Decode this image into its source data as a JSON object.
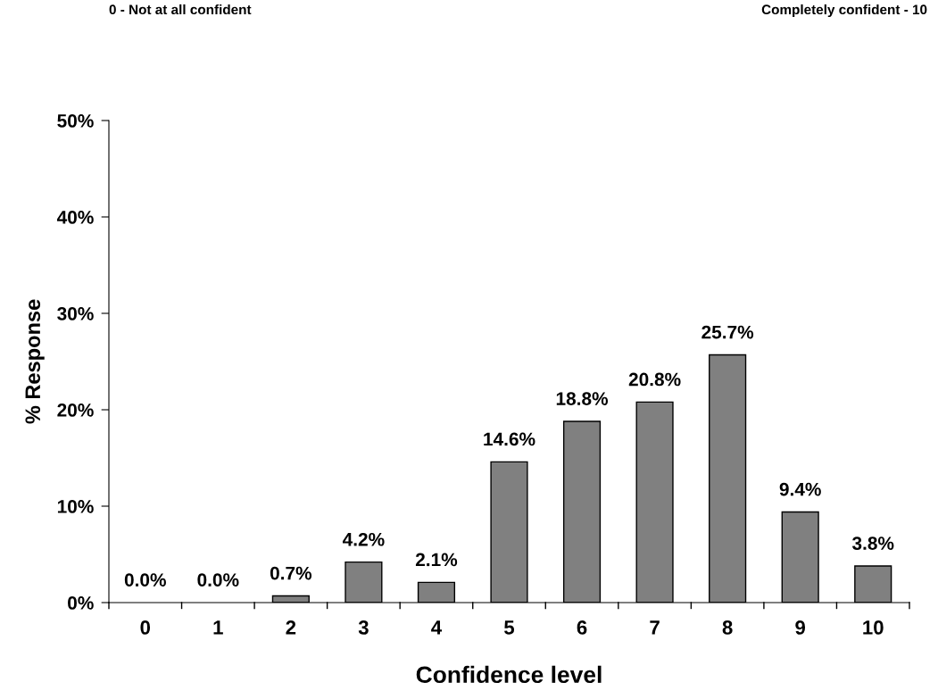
{
  "chart_data": {
    "type": "bar",
    "xlabel": "Confidence level",
    "ylabel": "% Response",
    "annotations": [
      "0 - Not at all confident",
      "Completely confident - 10"
    ],
    "categories": [
      "0",
      "1",
      "2",
      "3",
      "4",
      "5",
      "6",
      "7",
      "8",
      "9",
      "10"
    ],
    "values": [
      0.0,
      0.0,
      0.7,
      4.2,
      2.1,
      14.6,
      18.8,
      20.8,
      25.7,
      9.4,
      3.8
    ],
    "value_labels": [
      "0.0%",
      "0.0%",
      "0.7%",
      "4.2%",
      "2.1%",
      "14.6%",
      "18.8%",
      "20.8%",
      "25.7%",
      "9.4%",
      "3.8%"
    ],
    "color": "#808080",
    "ylim": [
      0,
      50
    ],
    "yticks": [
      {
        "value": 0,
        "label": "0%"
      },
      {
        "value": 10,
        "label": "10%"
      },
      {
        "value": 20,
        "label": "20%"
      },
      {
        "value": 30,
        "label": "30%"
      },
      {
        "value": 40,
        "label": "40%"
      },
      {
        "value": 50,
        "label": "50%"
      }
    ],
    "grid": false,
    "legend": false
  }
}
